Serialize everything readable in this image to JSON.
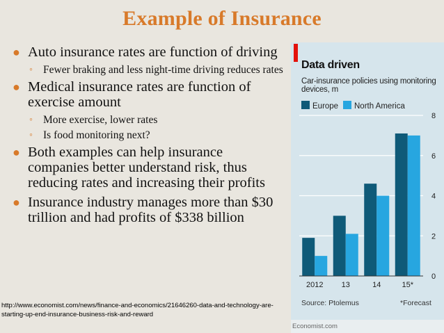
{
  "slide": {
    "title": "Example of Insurance",
    "bullets": [
      {
        "text": "Auto insurance rates are function of driving",
        "sub": [
          "Fewer braking and less night-time driving reduces rates"
        ]
      },
      {
        "text": "Medical insurance rates are function of exercise amount",
        "sub": [
          "More exercise, lower rates",
          "Is food monitoring next?"
        ]
      },
      {
        "text": "Both examples can help insurance companies better understand risk, thus reducing rates and increasing their profits",
        "sub": []
      },
      {
        "text": "Insurance industry manages more than $30 trillion and had profits of $338 billion",
        "sub": []
      }
    ],
    "source_url": "http://www.economist.com/news/finance-and-economics/21646260-data-and-technology-are-starting-up-end-insurance-business-risk-and-reward"
  },
  "chart_panel": {
    "title": "Data driven",
    "subtitle": "Car-insurance policies using monitoring devices, m",
    "source": "Source: Ptolemus",
    "forecast_note": "*Forecast",
    "credit": "Economist.com"
  },
  "chart_data": {
    "type": "bar",
    "categories": [
      "2012",
      "13",
      "14",
      "15*"
    ],
    "series": [
      {
        "name": "Europe",
        "color": "#0f5a78",
        "values": [
          1.9,
          3.0,
          4.6,
          7.1
        ]
      },
      {
        "name": "North America",
        "color": "#27a6e0",
        "values": [
          1.0,
          2.1,
          4.0,
          7.0
        ]
      }
    ],
    "ylim": [
      0,
      8
    ],
    "yticks": [
      0,
      2,
      4,
      6,
      8
    ],
    "y_axis_side": "right",
    "grid": true,
    "legend": "top-left"
  }
}
